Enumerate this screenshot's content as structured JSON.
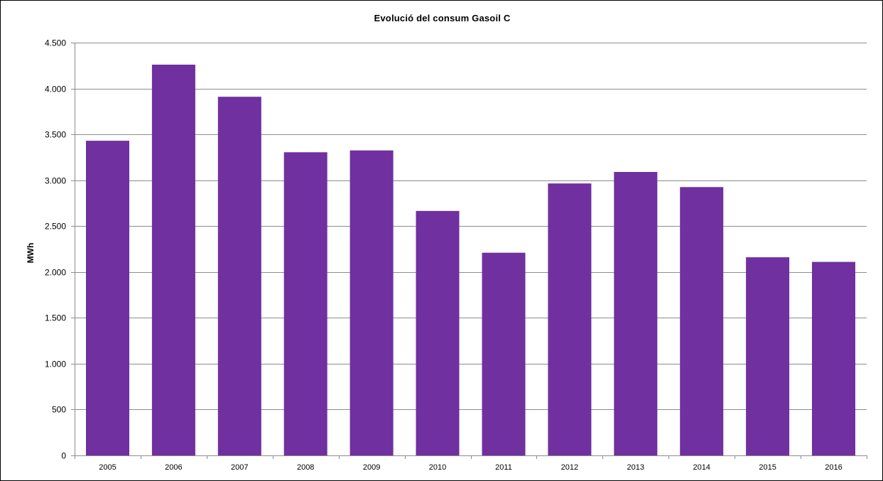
{
  "chart_data": {
    "type": "bar",
    "title": "Evolució del consum Gasoil C",
    "xlabel": "",
    "ylabel": "MWh",
    "categories": [
      "2005",
      "2006",
      "2007",
      "2008",
      "2009",
      "2010",
      "2011",
      "2012",
      "2013",
      "2014",
      "2015",
      "2016"
    ],
    "values": [
      3430,
      4260,
      3910,
      3305,
      3325,
      2665,
      2210,
      2965,
      3090,
      2925,
      2160,
      2110
    ],
    "ylim": [
      0,
      4500
    ],
    "yticks": [
      0,
      500,
      1000,
      1500,
      2000,
      2500,
      3000,
      3500,
      4000,
      4500
    ],
    "ytick_labels": [
      "0",
      "500",
      "1.000",
      "1.500",
      "2.000",
      "2.500",
      "3.000",
      "3.500",
      "4.000",
      "4.500"
    ],
    "grid": true,
    "legend": "none",
    "bar_color": "#7030A0"
  }
}
